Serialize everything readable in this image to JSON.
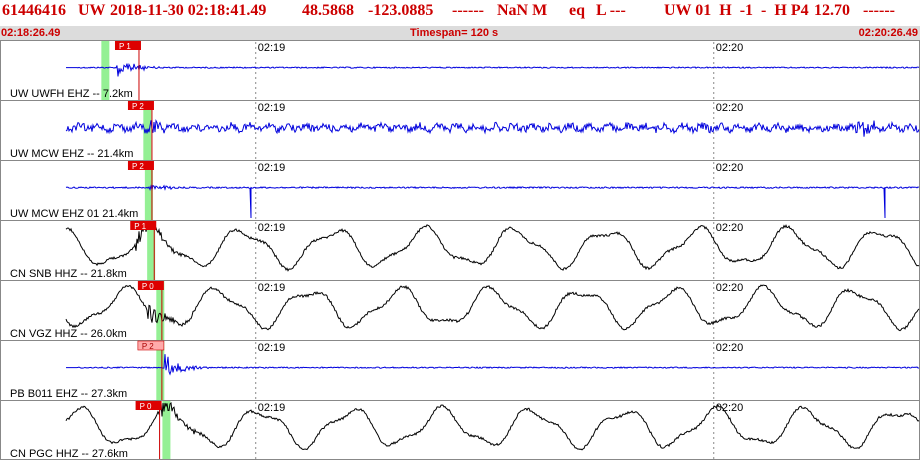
{
  "header": {
    "event_id": "61446416",
    "network": "UW",
    "datetime": "2018-11-30 02:18:41.49",
    "lat": "48.5868",
    "lon": "-123.0885",
    "depth": "------",
    "magnitude": "NaN M",
    "event_type": "eq",
    "location_flag": "L ---",
    "quality": "UW 01  H  -1  -  H P4",
    "value": "12.70",
    "trailing": "------"
  },
  "subheader": {
    "start_time": "02:18:26.49",
    "timespan": "Timespan= 120 s",
    "end_time": "02:20:26.49"
  },
  "time_axis": {
    "start_seconds": 0,
    "end_seconds": 120,
    "ticks": [
      {
        "label": "02:19",
        "seconds": 33.5
      },
      {
        "label": "02:20",
        "seconds": 93.5
      }
    ]
  },
  "colors": {
    "accent": "#cc0000",
    "short_period": "#0000dd",
    "broadband": "#000000",
    "pick_band": "#88ee88",
    "pick_flag": "#dd0000",
    "pick_flag_light": "#ffaaaa"
  },
  "traces": [
    {
      "label": "UW UWFH EHZ -- 7.2km",
      "color": "#0000dd",
      "style": "sp",
      "pick_label": "P 1",
      "pick_s": 14.8,
      "band_s": 13.8,
      "flag_light": false,
      "onset_s": 15.2
    },
    {
      "label": "UW MCW EHZ -- 21.4km",
      "color": "#0000dd",
      "style": "sp-noise",
      "pick_label": "P 2",
      "pick_s": 16.5,
      "band_s": 19.3,
      "flag_light": false,
      "onset_s": 19.8
    },
    {
      "label": "UW MCW EHZ 01 21.4km",
      "color": "#0000dd",
      "style": "sp-quiet",
      "pick_label": "P 2",
      "pick_s": 16.5,
      "band_s": 19.5,
      "flag_light": false,
      "onset_s": 19.8
    },
    {
      "label": "CN SNB HHZ -- 21.8km",
      "color": "#000000",
      "style": "bb",
      "pick_label": "P 1",
      "pick_s": 16.8,
      "band_s": 19.8,
      "flag_light": false,
      "onset_s": 18.0
    },
    {
      "label": "CN VGZ HHZ -- 26.0km",
      "color": "#000000",
      "style": "bb",
      "pick_label": "P 0",
      "pick_s": 17.8,
      "band_s": 21.0,
      "flag_light": false,
      "onset_s": 19.5
    },
    {
      "label": "PB B011 EHZ -- 27.3km",
      "color": "#0000dd",
      "style": "sp",
      "pick_label": "P 2",
      "pick_s": 17.8,
      "band_s": 21.0,
      "flag_light": true,
      "onset_s": 21.5
    },
    {
      "label": "CN PGC HHZ -- 27.6km",
      "color": "#000000",
      "style": "bb",
      "pick_label": "P 0",
      "pick_s": 17.5,
      "band_s": 21.8,
      "flag_light": false,
      "onset_s": 21.0
    }
  ]
}
